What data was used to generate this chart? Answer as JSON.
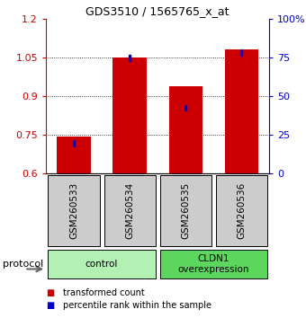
{
  "title": "GDS3510 / 1565765_x_at",
  "samples": [
    "GSM260533",
    "GSM260534",
    "GSM260535",
    "GSM260536"
  ],
  "red_values": [
    0.742,
    1.05,
    0.94,
    1.082
  ],
  "blue_values": [
    0.718,
    1.048,
    0.855,
    1.07
  ],
  "ylim": [
    0.6,
    1.2
  ],
  "y_ticks_left": [
    0.6,
    0.75,
    0.9,
    1.05,
    1.2
  ],
  "y_ticks_right": [
    0,
    25,
    50,
    75,
    100
  ],
  "groups": [
    {
      "label": "control",
      "indices": [
        0,
        1
      ],
      "color": "#b3f0b3"
    },
    {
      "label": "CLDN1\noverexpression",
      "indices": [
        2,
        3
      ],
      "color": "#5cd65c"
    }
  ],
  "bar_color": "#cc0000",
  "blue_color": "#0000cc",
  "bar_width": 0.6,
  "xlabel_gray_bg": "#cccccc",
  "legend_red_label": "transformed count",
  "legend_blue_label": "percentile rank within the sample",
  "left_axis_color": "#cc0000",
  "right_axis_color": "#0000cc",
  "protocol_label": "protocol"
}
